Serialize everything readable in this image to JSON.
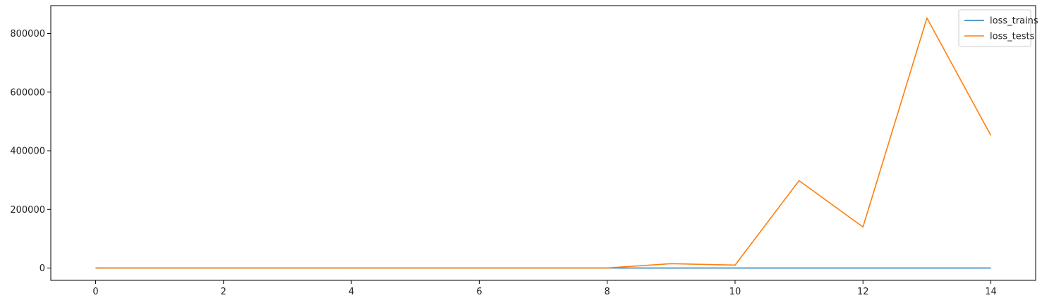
{
  "chart_data": {
    "type": "line",
    "title": "",
    "xlabel": "",
    "ylabel": "",
    "x": [
      0,
      1,
      2,
      3,
      4,
      5,
      6,
      7,
      8,
      9,
      10,
      11,
      12,
      13,
      14
    ],
    "xlim": [
      -0.7,
      14.7
    ],
    "ylim": [
      -42000,
      895000
    ],
    "xticks": [
      0,
      2,
      4,
      6,
      8,
      10,
      12,
      14
    ],
    "xtick_labels": [
      "0",
      "2",
      "4",
      "6",
      "8",
      "10",
      "12",
      "14"
    ],
    "yticks": [
      0,
      200000,
      400000,
      600000,
      800000
    ],
    "ytick_labels": [
      "0",
      "200000",
      "400000",
      "600000",
      "800000"
    ],
    "grid": false,
    "legend_position": "top-right",
    "series": [
      {
        "name": "loss_trains",
        "color": "#1f77b4",
        "values": [
          50,
          40,
          35,
          30,
          28,
          25,
          22,
          20,
          20,
          18,
          17,
          16,
          15,
          15,
          14
        ]
      },
      {
        "name": "loss_tests",
        "color": "#ff7f0e",
        "values": [
          100,
          120,
          110,
          105,
          100,
          120,
          130,
          150,
          200,
          15000,
          10000,
          298000,
          140000,
          853000,
          452000
        ]
      }
    ]
  }
}
